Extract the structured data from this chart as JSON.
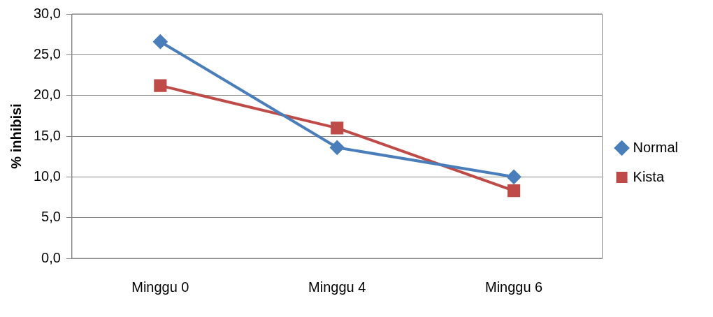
{
  "chart_data": {
    "type": "line",
    "ylabel": "% inhibisi",
    "categories": [
      "Minggu 0",
      "Minggu 4",
      "Minggu 6"
    ],
    "series": [
      {
        "name": "Normal",
        "color": "#4a7ebb",
        "marker": "diamond",
        "values": [
          26.6,
          13.6,
          10.0
        ]
      },
      {
        "name": "Kista",
        "color": "#be4b48",
        "marker": "square",
        "values": [
          21.2,
          16.0,
          8.3
        ]
      }
    ],
    "ylim": [
      0,
      30
    ],
    "yticks": [
      {
        "value": 0,
        "label": "0,0"
      },
      {
        "value": 5,
        "label": "5,0"
      },
      {
        "value": 10,
        "label": "10,0"
      },
      {
        "value": 15,
        "label": "15,0"
      },
      {
        "value": 20,
        "label": "20,0"
      },
      {
        "value": 25,
        "label": "25,0"
      },
      {
        "value": 30,
        "label": "30,0"
      }
    ],
    "grid": "y",
    "legend": "right",
    "line_style": "solid"
  }
}
